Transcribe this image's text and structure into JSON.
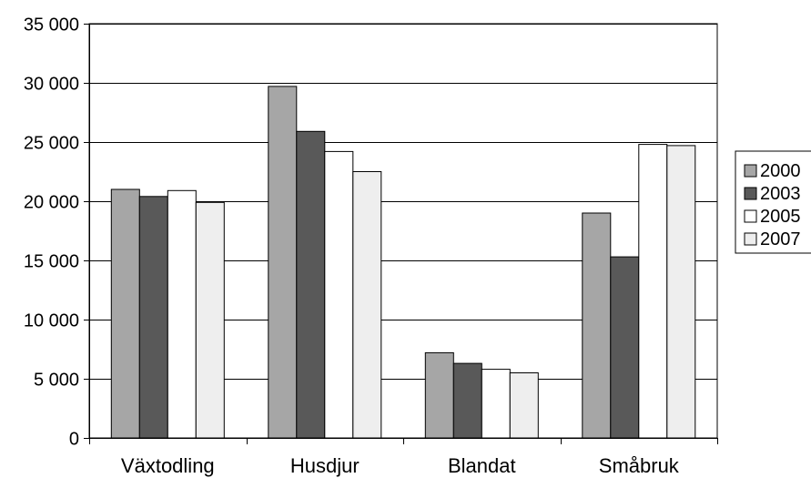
{
  "chart_data": {
    "type": "bar",
    "title": "",
    "xlabel": "",
    "ylabel": "",
    "categories": [
      "Växtodling",
      "Husdjur",
      "Blandat",
      "Småbruk"
    ],
    "series": [
      {
        "name": "2000",
        "values": [
          21000,
          29700,
          7200,
          19000
        ],
        "color": "#a6a6a6"
      },
      {
        "name": "2003",
        "values": [
          20400,
          25900,
          6300,
          15300
        ],
        "color": "#595959"
      },
      {
        "name": "2005",
        "values": [
          20900,
          24200,
          5800,
          24800
        ],
        "color": "#ffffff"
      },
      {
        "name": "2007",
        "values": [
          19900,
          22500,
          5500,
          24700
        ],
        "color": "#eeeeee"
      }
    ],
    "ylim": [
      0,
      35000
    ],
    "yticks": [
      0,
      5000,
      10000,
      15000,
      20000,
      25000,
      30000,
      35000
    ],
    "ytick_labels": [
      "0",
      "5 000",
      "10 000",
      "15 000",
      "20 000",
      "25 000",
      "30 000",
      "35 000"
    ],
    "grid": true,
    "legend": "right"
  }
}
